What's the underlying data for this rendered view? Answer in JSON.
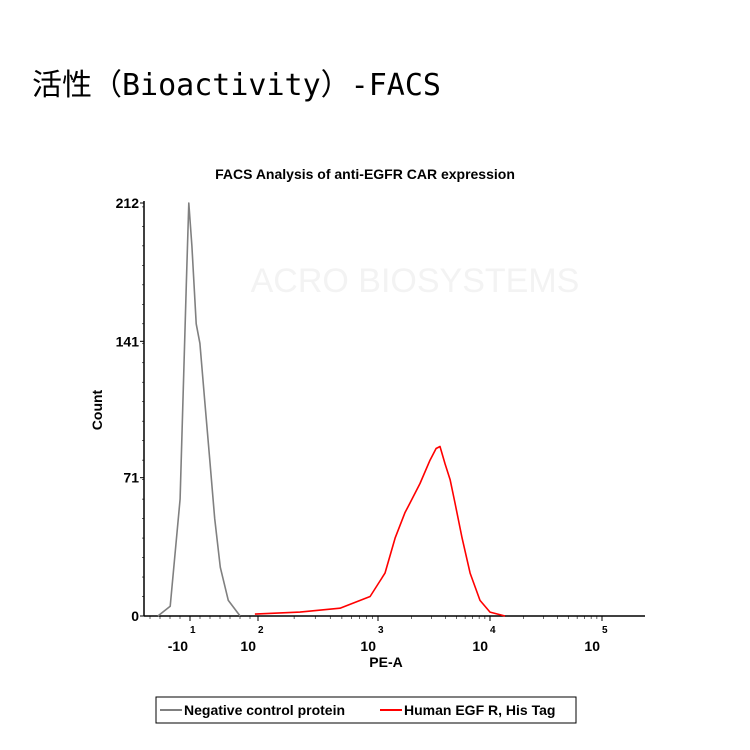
{
  "page": {
    "heading": "活性（Bioactivity）-FACS"
  },
  "watermark": "ACRO BIOSYSTEMS",
  "chart_data": {
    "type": "line",
    "title": "FACS Analysis of anti-EGFR CAR expression",
    "xlabel": "PE-A",
    "ylabel": "Count",
    "x_scale": "biexponential",
    "x_ticks": [
      {
        "base": "-10",
        "exp": "1",
        "value": -10
      },
      {
        "base": "10",
        "exp": "2",
        "value": 100
      },
      {
        "base": "10",
        "exp": "3",
        "value": 1000
      },
      {
        "base": "10",
        "exp": "4",
        "value": 10000
      },
      {
        "base": "10",
        "exp": "5",
        "value": 100000
      }
    ],
    "y_ticks": [
      "0",
      "71",
      "141",
      "212"
    ],
    "ylim": [
      0,
      212
    ],
    "legend_position": "bottom",
    "series": [
      {
        "name": "Negative control protein",
        "color": "#808080",
        "x": [
          -62,
          -42,
          -26,
          -16,
          -12,
          -7,
          0,
          6,
          14,
          22,
          30,
          39,
          52,
          71
        ],
        "y": [
          0,
          5,
          60,
          170,
          212,
          190,
          150,
          140,
          110,
          80,
          50,
          25,
          8,
          0
        ]
      },
      {
        "name": "Human EGF R, His Tag",
        "color": "#ff0000",
        "x": [
          95,
          224,
          482,
          860,
          1155,
          1420,
          1740,
          1930,
          2370,
          2910,
          3300,
          3580,
          3970,
          4400,
          4870,
          5630,
          6640,
          8140,
          10000,
          13600
        ],
        "y": [
          1,
          2,
          4,
          10,
          22,
          40,
          53,
          58,
          68,
          80,
          86,
          87,
          78,
          70,
          58,
          40,
          22,
          8,
          2,
          0
        ]
      }
    ]
  }
}
